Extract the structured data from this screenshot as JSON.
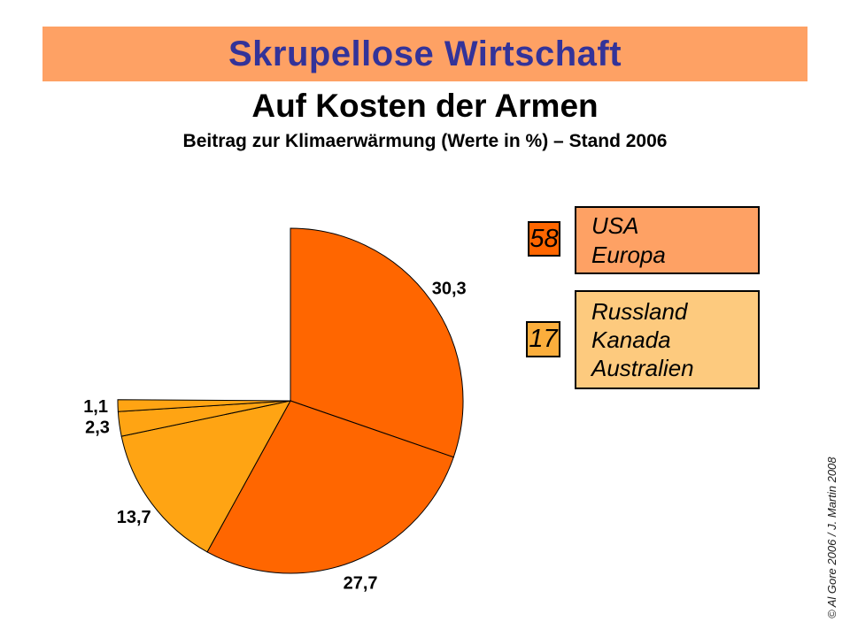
{
  "banner": {
    "title": "Skrupellose Wirtschaft",
    "bg_color": "#FEA164",
    "text_color": "#333399"
  },
  "header": {
    "subtitle": "Auf Kosten der Armen",
    "caption": "Beitrag zur Klimaerwärmung (Werte in %) – Stand 2006"
  },
  "chart_data": {
    "type": "pie",
    "title": "Beitrag zur Klimaerwärmung (Werte in %) – Stand 2006",
    "unit": "%",
    "start_angle_deg": 0,
    "direction": "clockwise",
    "shown_total_percent": 75.1,
    "empty_sector_percent": 24.9,
    "slices": [
      {
        "label": "30,3",
        "value": 30.3,
        "color": "#FF6600",
        "group": "USA/Europa"
      },
      {
        "label": "27,7",
        "value": 27.7,
        "color": "#FF6600",
        "group": "USA/Europa"
      },
      {
        "label": "13,7",
        "value": 13.7,
        "color": "#FFA413",
        "group": "Russland/Kanada/Australien"
      },
      {
        "label": "2,3",
        "value": 2.3,
        "color": "#FFA413",
        "group": "Russland/Kanada/Australien"
      },
      {
        "label": "1,1",
        "value": 1.1,
        "color": "#FFA413",
        "group": "Russland/Kanada/Australien"
      }
    ],
    "legend_position": "right",
    "outline_color": "#000000"
  },
  "legend": {
    "groups": [
      {
        "value": "58",
        "chip_color": "#FF6600",
        "box_color": "#FEA164",
        "lines": [
          "USA",
          "Europa"
        ]
      },
      {
        "value": "17",
        "chip_color": "#FBAE3C",
        "box_color": "#FDCA7E",
        "lines": [
          "Russland",
          "Kanada",
          "Australien"
        ]
      }
    ]
  },
  "footer": {
    "credit": "© Al Gore 2006  /  J. Martin 2008"
  }
}
